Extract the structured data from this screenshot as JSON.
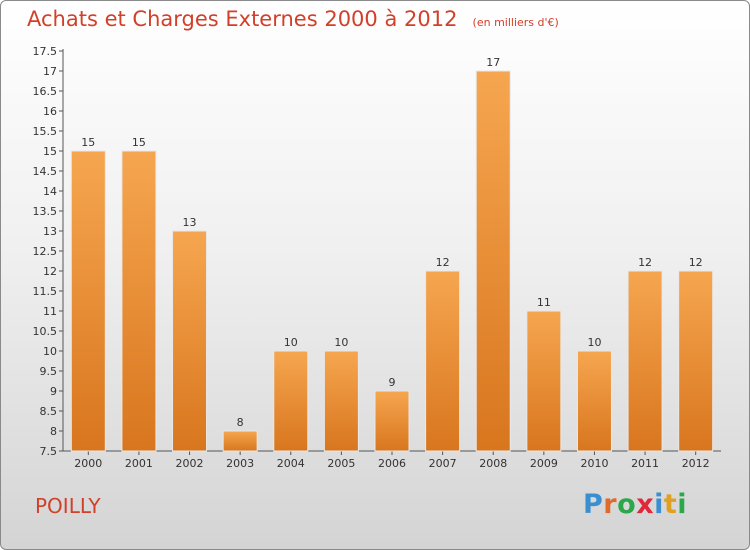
{
  "header": {
    "title": "Achats et Charges Externes 2000 à 2012",
    "unit": "(en milliers d'€)"
  },
  "footer": {
    "commune": "POILLY",
    "logo_letters": [
      "P",
      "r",
      "o",
      "x",
      "i",
      "t",
      "i"
    ],
    "logo_colors": [
      "#3a8fd0",
      "#e06a2a",
      "#2aa84a",
      "#e0283a",
      "#3a8fd0",
      "#e0a020",
      "#2aa84a"
    ]
  },
  "colors": {
    "bar_light": "#f6a650",
    "bar_dark": "#d8761e",
    "title": "#d3402a"
  },
  "chart_data": {
    "type": "bar",
    "categories": [
      "2000",
      "2001",
      "2002",
      "2003",
      "2004",
      "2005",
      "2006",
      "2007",
      "2008",
      "2009",
      "2010",
      "2011",
      "2012"
    ],
    "values": [
      15,
      15,
      13,
      8,
      10,
      10,
      9,
      12,
      17,
      11,
      10,
      12,
      12
    ],
    "ylim": [
      7.5,
      17.5
    ],
    "yticks": [
      "7.5",
      "8",
      "8.5",
      "9",
      "9.5",
      "10",
      "10.5",
      "11",
      "11.5",
      "12",
      "12.5",
      "13",
      "13.5",
      "14",
      "14.5",
      "15",
      "15.5",
      "16",
      "16.5",
      "17",
      "17.5"
    ],
    "grid": false,
    "title": "Achats et Charges Externes 2000 à 2012",
    "xlabel": "",
    "ylabel": ""
  }
}
